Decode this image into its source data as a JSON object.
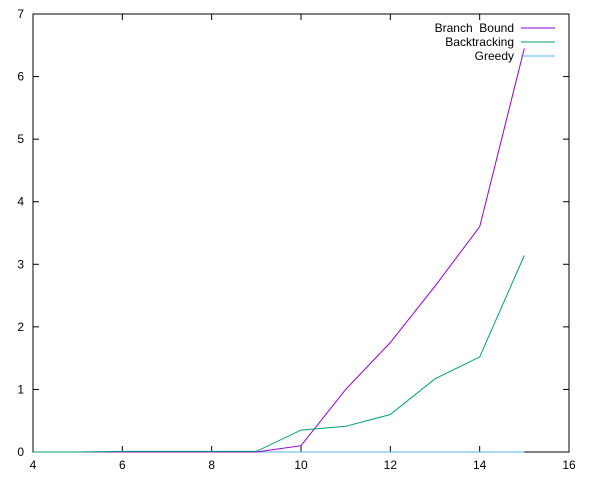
{
  "chart_data": {
    "type": "line",
    "title": "",
    "xlabel": "",
    "ylabel": "",
    "xlim": [
      4,
      16
    ],
    "ylim": [
      0,
      7
    ],
    "x_ticks": [
      4,
      6,
      8,
      10,
      12,
      14,
      16
    ],
    "y_ticks": [
      0,
      1,
      2,
      3,
      4,
      5,
      6,
      7
    ],
    "x_tick_labels": [
      "4",
      "6",
      "8",
      "10",
      "12",
      "14",
      "16"
    ],
    "y_tick_labels": [
      "0",
      "1",
      "2",
      "3",
      "4",
      "5",
      "6",
      "7"
    ],
    "grid": false,
    "legend_position": "top-right",
    "series": [
      {
        "name": "Branch  Bound",
        "color": "#9400d3",
        "x": [
          4,
          5,
          6,
          7,
          8,
          9,
          10,
          11,
          12,
          13,
          14,
          15
        ],
        "y": [
          0,
          0,
          0,
          0,
          0,
          0,
          0.1,
          1.0,
          1.75,
          2.65,
          3.6,
          6.45
        ]
      },
      {
        "name": "Backtracking",
        "color": "#009e73",
        "x": [
          4,
          5,
          6,
          7,
          8,
          9,
          10,
          11,
          12,
          13,
          14,
          15
        ],
        "y": [
          0,
          0,
          0.01,
          0.01,
          0.01,
          0.01,
          0.35,
          0.41,
          0.6,
          1.17,
          1.52,
          3.14
        ]
      },
      {
        "name": "Greedy",
        "color": "#56b4e9",
        "x": [
          4,
          5,
          6,
          7,
          8,
          9,
          10,
          11,
          12,
          13,
          14,
          15
        ],
        "y": [
          0,
          0,
          0,
          0,
          0,
          0,
          0,
          0,
          0,
          0,
          0,
          0
        ]
      }
    ]
  }
}
